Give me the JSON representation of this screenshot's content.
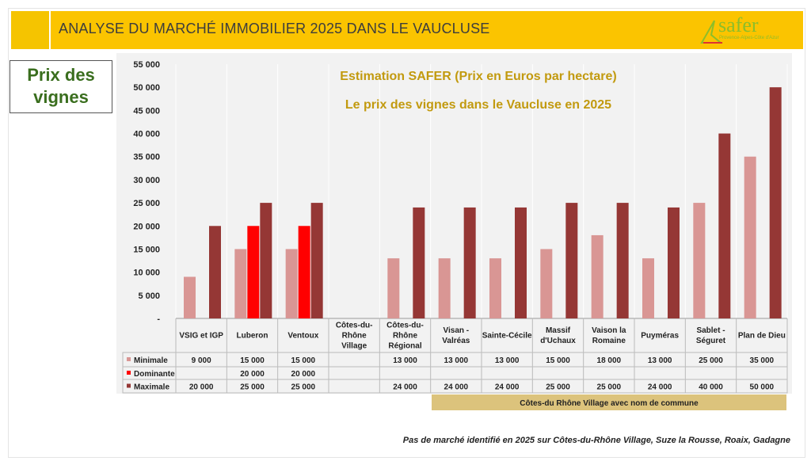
{
  "header": {
    "title": "ANALYSE DU MARCHÉ IMMOBILIER 2025 DANS LE VAUCLUSE",
    "logo_text": "safer",
    "logo_sub": "Provence-Alpes-Côte d'Azur"
  },
  "side_label": {
    "line1": "Prix des",
    "line2": "vignes"
  },
  "footnote": "Pas de marché identifié en 2025 sur Côtes-du-Rhône Village, Suze la Rousse, Roaix, Gadagne",
  "chart_data": {
    "type": "bar",
    "title": "Estimation SAFER (Prix en Euros par hectare)",
    "subtitle": "Le prix des vignes dans le Vaucluse en  2025",
    "ylim": [
      0,
      55000
    ],
    "yticks": [
      "-",
      "5 000",
      "10 000",
      "15 000",
      "20 000",
      "25 000",
      "30 000",
      "35 000",
      "40 000",
      "45 000",
      "50 000",
      "55 000"
    ],
    "grid": true,
    "categories": [
      [
        "VSIG et IGP"
      ],
      [
        "Luberon"
      ],
      [
        "Ventoux"
      ],
      [
        "Côtes-du-",
        "Rhône",
        "Village"
      ],
      [
        "Côtes-du-",
        "Rhône",
        "Régional"
      ],
      [
        "Visan -",
        "Valréas"
      ],
      [
        "Sainte-Cécile"
      ],
      [
        "Massif",
        "d'Uchaux"
      ],
      [
        "Vaison la",
        "Romaine"
      ],
      [
        "Puyméras"
      ],
      [
        "Sablet -",
        "Séguret"
      ],
      [
        "Plan de Dieu"
      ]
    ],
    "series": [
      {
        "name": "Minimale",
        "color": "#d99694",
        "values": [
          9000,
          15000,
          15000,
          null,
          13000,
          13000,
          13000,
          15000,
          18000,
          13000,
          25000,
          35000
        ],
        "labels": [
          "9 000",
          "15 000",
          "15 000",
          "",
          "13 000",
          "13 000",
          "13 000",
          "15 000",
          "18 000",
          "13 000",
          "25 000",
          "35 000"
        ]
      },
      {
        "name": "Dominante",
        "color": "#ff0000",
        "values": [
          null,
          20000,
          20000,
          null,
          null,
          null,
          null,
          null,
          null,
          null,
          null,
          null
        ],
        "labels": [
          "",
          "20 000",
          "20 000",
          "",
          "",
          "",
          "",
          "",
          "",
          "",
          "",
          ""
        ]
      },
      {
        "name": "Maximale",
        "color": "#953735",
        "values": [
          20000,
          25000,
          25000,
          null,
          24000,
          24000,
          24000,
          25000,
          25000,
          24000,
          40000,
          50000
        ],
        "labels": [
          "20 000",
          "25 000",
          "25 000",
          "",
          "24 000",
          "24 000",
          "24 000",
          "25 000",
          "25 000",
          "24 000",
          "40 000",
          "50 000"
        ]
      }
    ],
    "group_annotation": "Côtes-du Rhône Village avec nom de commune",
    "title_color": "#c29a0f"
  }
}
